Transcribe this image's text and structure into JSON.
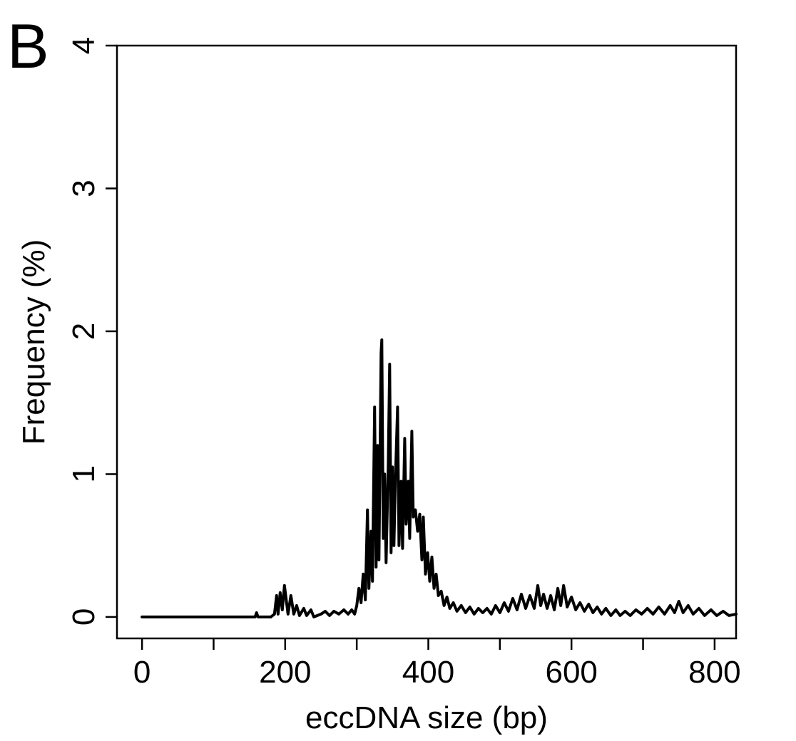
{
  "panel_label": "B",
  "chart_data": {
    "type": "line",
    "xlabel": "eccDNA size (bp)",
    "ylabel": "Frequency (%)",
    "xlim": [
      -35,
      830
    ],
    "ylim": [
      -0.15,
      4.0
    ],
    "x_ticks": [
      0,
      100,
      200,
      300,
      400,
      500,
      600,
      700,
      800
    ],
    "x_tick_labels": [
      {
        "value": 0,
        "label": "0"
      },
      {
        "value": 200,
        "label": "200"
      },
      {
        "value": 400,
        "label": "400"
      },
      {
        "value": 600,
        "label": "600"
      },
      {
        "value": 800,
        "label": "800"
      }
    ],
    "y_ticks": [
      {
        "value": 0,
        "label": "0"
      },
      {
        "value": 1,
        "label": "1"
      },
      {
        "value": 2,
        "label": "2"
      },
      {
        "value": 3,
        "label": "3"
      },
      {
        "value": 4,
        "label": "4"
      }
    ],
    "grid": false,
    "series": [
      {
        "color": "#000000",
        "points": [
          [
            0,
            0
          ],
          [
            100,
            0
          ],
          [
            158,
            0
          ],
          [
            160,
            0.03
          ],
          [
            162,
            0
          ],
          [
            180,
            0
          ],
          [
            185,
            0.02
          ],
          [
            188,
            0.15
          ],
          [
            190,
            0.02
          ],
          [
            193,
            0.17
          ],
          [
            196,
            0.05
          ],
          [
            199,
            0.22
          ],
          [
            202,
            0.1
          ],
          [
            204,
            0.02
          ],
          [
            208,
            0.15
          ],
          [
            212,
            0.02
          ],
          [
            216,
            0.08
          ],
          [
            220,
            0.01
          ],
          [
            226,
            0.06
          ],
          [
            230,
            0.01
          ],
          [
            236,
            0.05
          ],
          [
            240,
            0
          ],
          [
            250,
            0.02
          ],
          [
            256,
            0.04
          ],
          [
            262,
            0.01
          ],
          [
            268,
            0.04
          ],
          [
            275,
            0.02
          ],
          [
            282,
            0.05
          ],
          [
            288,
            0.02
          ],
          [
            293,
            0.05
          ],
          [
            297,
            0.02
          ],
          [
            300,
            0.08
          ],
          [
            303,
            0.2
          ],
          [
            306,
            0.1
          ],
          [
            309,
            0.3
          ],
          [
            312,
            0.12
          ],
          [
            315,
            0.75
          ],
          [
            317,
            0.2
          ],
          [
            320,
            0.6
          ],
          [
            322,
            0.25
          ],
          [
            325,
            1.47
          ],
          [
            327,
            0.35
          ],
          [
            329,
            1.2
          ],
          [
            331,
            0.4
          ],
          [
            334,
            1.85
          ],
          [
            335,
            1.94
          ],
          [
            337,
            0.55
          ],
          [
            339,
            1.0
          ],
          [
            341,
            0.38
          ],
          [
            344,
            1.05
          ],
          [
            346,
            1.77
          ],
          [
            348,
            0.45
          ],
          [
            350,
            1.05
          ],
          [
            352,
            0.5
          ],
          [
            354,
            0.95
          ],
          [
            357,
            1.47
          ],
          [
            359,
            0.5
          ],
          [
            362,
            0.95
          ],
          [
            364,
            0.48
          ],
          [
            367,
            1.25
          ],
          [
            369,
            0.65
          ],
          [
            372,
            0.95
          ],
          [
            374,
            0.55
          ],
          [
            377,
            1.3
          ],
          [
            379,
            0.7
          ],
          [
            382,
            0.75
          ],
          [
            385,
            0.6
          ],
          [
            388,
            0.72
          ],
          [
            391,
            0.4
          ],
          [
            393,
            0.7
          ],
          [
            396,
            0.3
          ],
          [
            399,
            0.45
          ],
          [
            402,
            0.25
          ],
          [
            405,
            0.42
          ],
          [
            408,
            0.2
          ],
          [
            411,
            0.3
          ],
          [
            414,
            0.15
          ],
          [
            418,
            0.18
          ],
          [
            422,
            0.08
          ],
          [
            426,
            0.14
          ],
          [
            430,
            0.06
          ],
          [
            435,
            0.1
          ],
          [
            440,
            0.04
          ],
          [
            446,
            0.08
          ],
          [
            452,
            0.03
          ],
          [
            458,
            0.07
          ],
          [
            464,
            0.02
          ],
          [
            470,
            0.06
          ],
          [
            476,
            0.03
          ],
          [
            482,
            0.06
          ],
          [
            488,
            0.02
          ],
          [
            494,
            0.08
          ],
          [
            500,
            0.03
          ],
          [
            506,
            0.1
          ],
          [
            512,
            0.04
          ],
          [
            518,
            0.13
          ],
          [
            524,
            0.05
          ],
          [
            530,
            0.16
          ],
          [
            536,
            0.06
          ],
          [
            542,
            0.15
          ],
          [
            548,
            0.06
          ],
          [
            553,
            0.22
          ],
          [
            557,
            0.08
          ],
          [
            561,
            0.16
          ],
          [
            566,
            0.06
          ],
          [
            571,
            0.15
          ],
          [
            576,
            0.05
          ],
          [
            581,
            0.2
          ],
          [
            585,
            0.08
          ],
          [
            589,
            0.22
          ],
          [
            594,
            0.07
          ],
          [
            600,
            0.14
          ],
          [
            606,
            0.05
          ],
          [
            612,
            0.1
          ],
          [
            618,
            0.04
          ],
          [
            624,
            0.09
          ],
          [
            630,
            0.03
          ],
          [
            636,
            0.07
          ],
          [
            642,
            0.02
          ],
          [
            648,
            0.06
          ],
          [
            655,
            0.01
          ],
          [
            662,
            0.05
          ],
          [
            668,
            0.01
          ],
          [
            675,
            0.04
          ],
          [
            682,
            0.01
          ],
          [
            690,
            0.05
          ],
          [
            698,
            0.02
          ],
          [
            706,
            0.06
          ],
          [
            714,
            0.02
          ],
          [
            722,
            0.07
          ],
          [
            730,
            0.02
          ],
          [
            738,
            0.08
          ],
          [
            744,
            0.03
          ],
          [
            750,
            0.11
          ],
          [
            756,
            0.03
          ],
          [
            763,
            0.08
          ],
          [
            770,
            0.02
          ],
          [
            778,
            0.06
          ],
          [
            786,
            0.01
          ],
          [
            795,
            0.05
          ],
          [
            803,
            0.01
          ],
          [
            812,
            0.04
          ],
          [
            820,
            0.01
          ],
          [
            830,
            0.02
          ]
        ]
      }
    ]
  }
}
